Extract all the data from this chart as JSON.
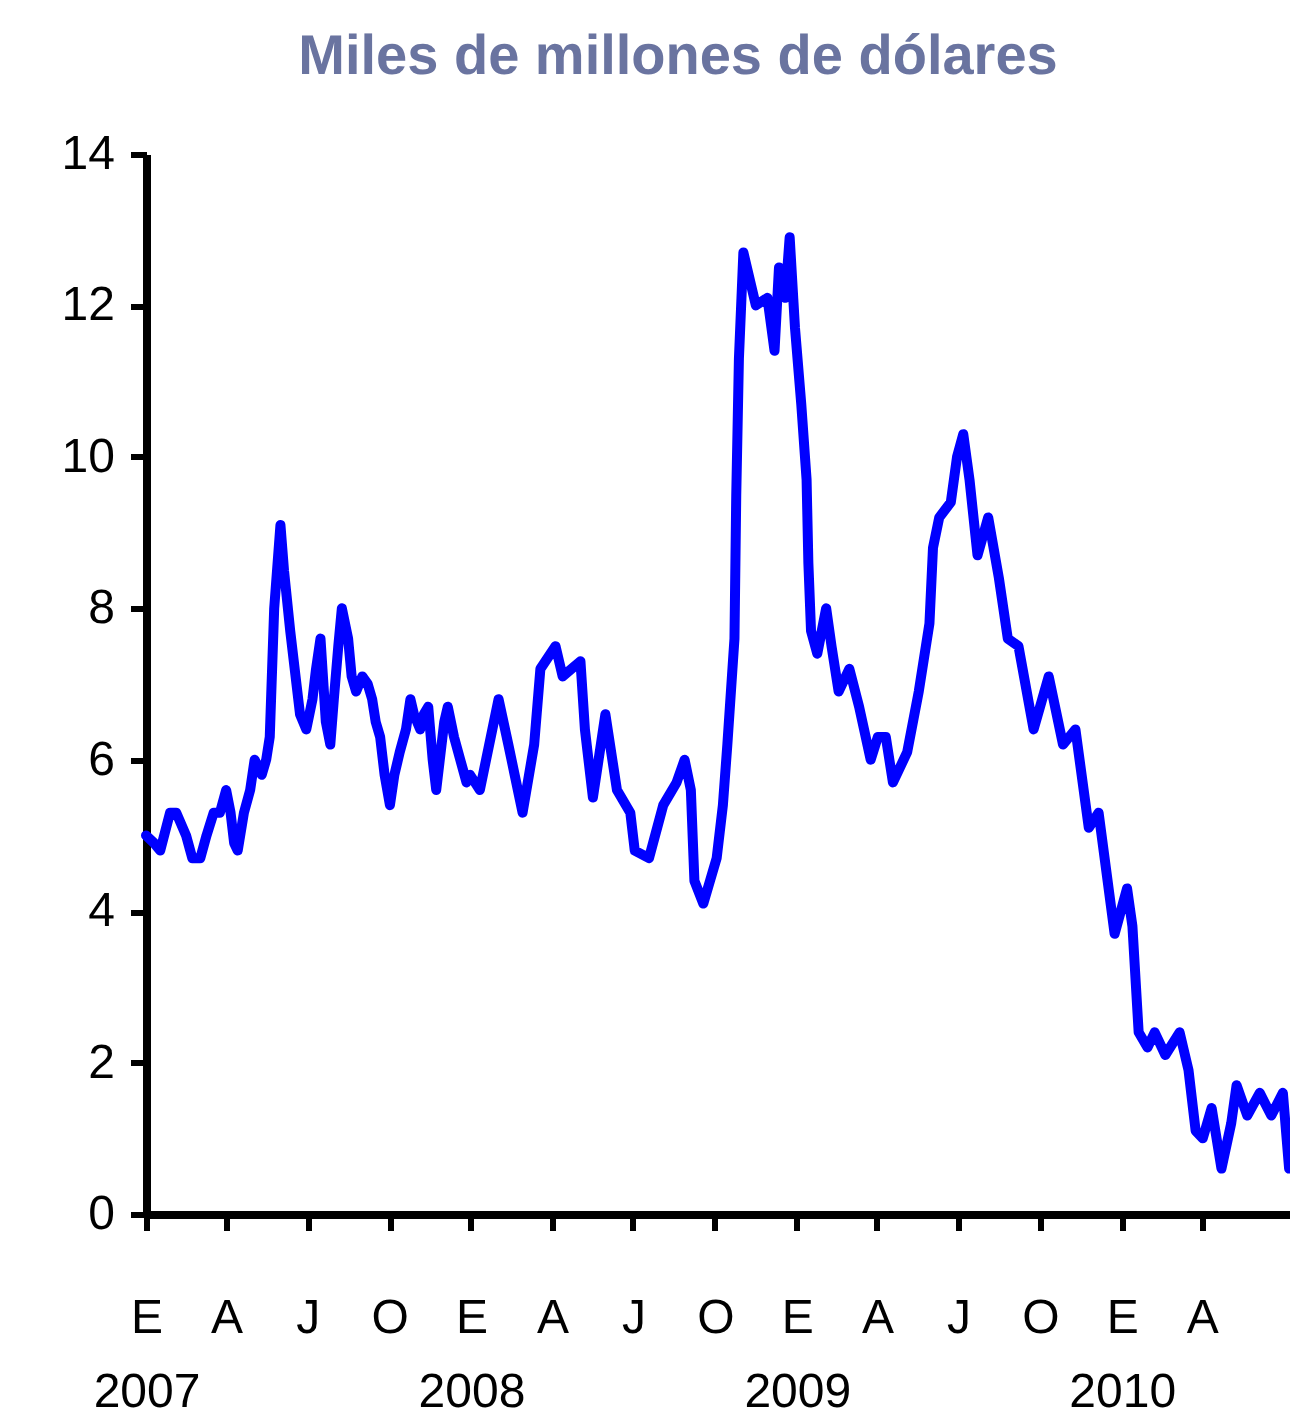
{
  "chart_data": {
    "type": "line",
    "title": "Miles de millones de dólares",
    "x": [
      "2007-01-01",
      "2007-01-10",
      "2007-01-17",
      "2007-01-28",
      "2007-02-04",
      "2007-02-15",
      "2007-02-22",
      "2007-03-03",
      "2007-03-10",
      "2007-03-18",
      "2007-03-25",
      "2007-04-01",
      "2007-04-06",
      "2007-04-10",
      "2007-04-14",
      "2007-04-21",
      "2007-04-28",
      "2007-05-03",
      "2007-05-11",
      "2007-05-16",
      "2007-05-20",
      "2007-05-25",
      "2007-06-01",
      "2007-06-05",
      "2007-06-12",
      "2007-06-19",
      "2007-06-23",
      "2007-06-30",
      "2007-07-07",
      "2007-07-11",
      "2007-07-16",
      "2007-07-22",
      "2007-07-27",
      "2007-07-31",
      "2007-08-05",
      "2007-08-09",
      "2007-08-16",
      "2007-08-20",
      "2007-08-25",
      "2007-09-01",
      "2007-09-07",
      "2007-09-12",
      "2007-09-16",
      "2007-09-21",
      "2007-09-26",
      "2007-10-02",
      "2007-10-07",
      "2007-10-13",
      "2007-10-20",
      "2007-10-25",
      "2007-10-29",
      "2007-11-05",
      "2007-11-09",
      "2007-11-14",
      "2007-11-19",
      "2007-11-23",
      "2007-11-27",
      "2007-12-02",
      "2007-12-06",
      "2007-12-13",
      "2007-12-20",
      "2007-12-27",
      "2007-12-31",
      "2008-01-11",
      "2008-02-01",
      "2008-02-12",
      "2008-02-28",
      "2008-03-12",
      "2008-03-19",
      "2008-04-05",
      "2008-04-13",
      "2008-05-03",
      "2008-05-08",
      "2008-05-17",
      "2008-05-31",
      "2008-06-13",
      "2008-06-28",
      "2008-07-03",
      "2008-07-19",
      "2008-08-04",
      "2008-08-19",
      "2008-08-28",
      "2008-09-04",
      "2008-09-08",
      "2008-09-18",
      "2008-10-03",
      "2008-10-10",
      "2008-10-15",
      "2008-10-23",
      "2008-10-25",
      "2008-10-28",
      "2008-11-02",
      "2008-11-16",
      "2008-11-29",
      "2008-12-07",
      "2008-12-12",
      "2008-12-19",
      "2008-12-24",
      "2008-12-30",
      "2009-01-06",
      "2009-01-12",
      "2009-01-14",
      "2009-01-17",
      "2009-01-24",
      "2009-02-03",
      "2009-02-09",
      "2009-02-17",
      "2009-03-01",
      "2009-03-12",
      "2009-03-25",
      "2009-04-02",
      "2009-04-11",
      "2009-04-19",
      "2009-05-05",
      "2009-05-18",
      "2009-05-30",
      "2009-06-03",
      "2009-06-10",
      "2009-06-23",
      "2009-06-30",
      "2009-07-07",
      "2009-07-14",
      "2009-07-23",
      "2009-08-04",
      "2009-08-16",
      "2009-08-26",
      "2009-09-07",
      "2009-09-24",
      "2009-10-11",
      "2009-10-27",
      "2009-11-10",
      "2009-11-25",
      "2009-12-06",
      "2009-12-24",
      "2010-01-07",
      "2010-01-13",
      "2010-01-20",
      "2010-01-30",
      "2010-02-07",
      "2010-02-19",
      "2010-03-07",
      "2010-03-17",
      "2010-03-25",
      "2010-04-02",
      "2010-04-12",
      "2010-04-23",
      "2010-05-04",
      "2010-05-10",
      "2010-05-22",
      "2010-06-05",
      "2010-06-18",
      "2010-07-01",
      "2010-07-08"
    ],
    "series": [
      {
        "color": "#0000ff",
        "values": [
          5.0,
          4.9,
          4.8,
          5.3,
          5.3,
          5.0,
          4.7,
          4.7,
          5.0,
          5.3,
          5.3,
          5.6,
          5.3,
          4.9,
          4.8,
          5.3,
          5.6,
          6.0,
          5.8,
          6.0,
          6.3,
          8.0,
          9.1,
          8.5,
          7.7,
          7.0,
          6.6,
          6.4,
          6.8,
          7.2,
          7.6,
          6.5,
          6.2,
          6.8,
          7.5,
          8.0,
          7.6,
          7.1,
          6.9,
          7.1,
          7.0,
          6.8,
          6.5,
          6.3,
          5.8,
          5.4,
          5.8,
          6.1,
          6.4,
          6.8,
          6.6,
          6.4,
          6.6,
          6.7,
          6.0,
          5.6,
          6.0,
          6.5,
          6.7,
          6.3,
          6.0,
          5.7,
          5.8,
          5.6,
          6.8,
          6.2,
          5.3,
          6.2,
          7.2,
          7.5,
          7.1,
          7.3,
          6.4,
          5.5,
          6.6,
          5.6,
          5.3,
          4.8,
          4.7,
          5.4,
          5.7,
          6.0,
          5.6,
          4.4,
          4.1,
          4.7,
          5.4,
          6.2,
          7.6,
          9.5,
          11.3,
          12.7,
          12.0,
          12.1,
          11.4,
          12.5,
          12.1,
          12.9,
          11.7,
          10.7,
          9.7,
          8.6,
          7.7,
          7.4,
          8.0,
          7.5,
          6.9,
          7.2,
          6.7,
          6.0,
          6.3,
          6.3,
          5.7,
          6.1,
          6.9,
          7.8,
          8.8,
          9.2,
          9.4,
          10.0,
          10.3,
          9.7,
          8.7,
          9.2,
          8.4,
          7.6,
          7.5,
          6.4,
          7.1,
          6.2,
          6.4,
          5.1,
          5.3,
          3.7,
          4.3,
          3.8,
          2.4,
          2.2,
          2.4,
          2.1,
          2.4,
          1.9,
          1.1,
          1.0,
          1.4,
          0.6,
          1.2,
          1.7,
          1.3,
          1.6,
          1.3,
          1.6,
          0.6
        ]
      }
    ],
    "xlim": [
      "2007-01-01",
      "2010-07-09"
    ],
    "xticks": [
      {
        "value": "2007-01-01",
        "label": "E\n2007"
      },
      {
        "value": "2007-04-01",
        "label": "A"
      },
      {
        "value": "2007-07-01",
        "label": "J"
      },
      {
        "value": "2007-10-01",
        "label": "O"
      },
      {
        "value": "2008-01-01",
        "label": "E\n2008"
      },
      {
        "value": "2008-04-01",
        "label": "A"
      },
      {
        "value": "2008-07-01",
        "label": "J"
      },
      {
        "value": "2008-10-01",
        "label": "O"
      },
      {
        "value": "2009-01-01",
        "label": "E\n2009"
      },
      {
        "value": "2009-04-01",
        "label": "A"
      },
      {
        "value": "2009-07-01",
        "label": "J"
      },
      {
        "value": "2009-10-01",
        "label": "O"
      },
      {
        "value": "2010-01-01",
        "label": "E\n2010"
      },
      {
        "value": "2010-04-01",
        "label": "A"
      }
    ],
    "ylim": [
      0,
      14
    ],
    "yticks": [
      0,
      2,
      4,
      6,
      8,
      10,
      12,
      14
    ],
    "marker": "none",
    "line_style": "solid"
  }
}
